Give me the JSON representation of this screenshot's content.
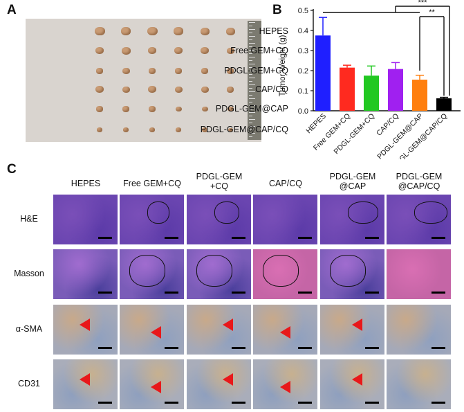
{
  "panels": {
    "a": "A",
    "b": "B",
    "c": "C"
  },
  "photo_groups": [
    "HEPES",
    "Free GEM+CQ",
    "PDGL-GEM+CQ",
    "CAP/CQ",
    "PDGL-GEM@CAP",
    "PDGL-GEM@CAP/CQ"
  ],
  "chart_data": {
    "type": "bar",
    "categories": [
      "HEPES",
      "Free GEM+CQ",
      "PDGL-GEM+CQ",
      "CAP/CQ",
      "PDGL-GEM@CAP",
      "PDGL-GEM@CAP/CQ"
    ],
    "values": [
      0.375,
      0.215,
      0.175,
      0.208,
      0.155,
      0.062
    ],
    "errors": [
      0.09,
      0.012,
      0.048,
      0.032,
      0.022,
      0.005
    ],
    "colors": [
      "#1f1fff",
      "#ff2a1f",
      "#22c822",
      "#a020f0",
      "#ff7f0e",
      "#000000"
    ],
    "ylabel": "Tumor Weight (g)",
    "ylim": [
      0,
      0.5
    ],
    "yticks": [
      "0.0",
      "0.1",
      "0.2",
      "0.3",
      "0.4",
      "0.5"
    ],
    "significance": [
      "***",
      "**"
    ]
  },
  "histology": {
    "columns": [
      "HEPES",
      "Free GEM+CQ",
      "PDGL-GEM\n+CQ",
      "CAP/CQ",
      "PDGL-GEM\n@CAP",
      "PDGL-GEM\n@CAP/CQ"
    ],
    "rows": [
      "H&E",
      "Masson",
      "α-SMA",
      "CD31"
    ]
  }
}
